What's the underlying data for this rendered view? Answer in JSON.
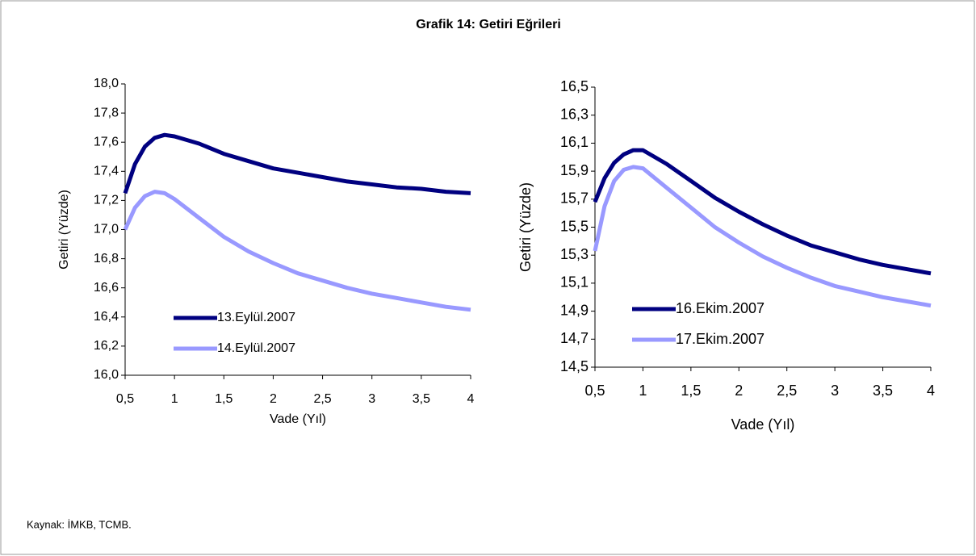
{
  "title": "Grafik 14: Getiri Eğrileri",
  "source": "Kaynak: İMKB, TCMB.",
  "chart_data": [
    {
      "type": "line",
      "x_label": "Vade (Yıl)",
      "y_label": "Getiri (Yüzde)",
      "x": [
        0.5,
        0.6,
        0.7,
        0.8,
        0.9,
        1.0,
        1.25,
        1.5,
        1.75,
        2,
        2.25,
        2.5,
        2.75,
        3,
        3.25,
        3.5,
        3.75,
        4
      ],
      "series": [
        {
          "name": "13.Eylül.2007",
          "color": "#000080",
          "values": [
            17.25,
            17.45,
            17.57,
            17.63,
            17.65,
            17.64,
            17.59,
            17.52,
            17.47,
            17.42,
            17.39,
            17.36,
            17.33,
            17.31,
            17.29,
            17.28,
            17.26,
            17.25
          ]
        },
        {
          "name": "14.Eylül.2007",
          "color": "#9999ff",
          "values": [
            17.0,
            17.15,
            17.23,
            17.26,
            17.25,
            17.21,
            17.08,
            16.95,
            16.85,
            16.77,
            16.7,
            16.65,
            16.6,
            16.56,
            16.53,
            16.5,
            16.47,
            16.45
          ]
        }
      ],
      "xlim": [
        0.5,
        4
      ],
      "xticks": [
        {
          "value": 0.5,
          "label": "0,5"
        },
        1,
        {
          "value": 1.5,
          "label": "1,5"
        },
        2,
        {
          "value": 2.5,
          "label": "2,5"
        },
        3,
        {
          "value": 3.5,
          "label": "3,5"
        },
        4
      ],
      "ylim": [
        16,
        18
      ],
      "yticks": [
        {
          "value": 16,
          "label": "16,0"
        },
        {
          "value": 16.2,
          "label": "16,2"
        },
        {
          "value": 16.4,
          "label": "16,4"
        },
        {
          "value": 16.6,
          "label": "16,6"
        },
        {
          "value": 16.8,
          "label": "16,8"
        },
        {
          "value": 17,
          "label": "17,0"
        },
        {
          "value": 17.2,
          "label": "17,2"
        },
        {
          "value": 17.4,
          "label": "17,4"
        },
        {
          "value": 17.6,
          "label": "17,6"
        },
        {
          "value": 17.8,
          "label": "17,8"
        },
        {
          "value": 18,
          "label": "18,0"
        }
      ]
    },
    {
      "type": "line",
      "x_label": "Vade (Yıl)",
      "y_label": "Getiri (Yüzde)",
      "x": [
        0.5,
        0.6,
        0.7,
        0.8,
        0.9,
        1.0,
        1.25,
        1.5,
        1.75,
        2,
        2.25,
        2.5,
        2.75,
        3,
        3.25,
        3.5,
        3.75,
        4
      ],
      "series": [
        {
          "name": "16.Ekim.2007",
          "color": "#000080",
          "values": [
            15.68,
            15.85,
            15.96,
            16.02,
            16.05,
            16.05,
            15.95,
            15.83,
            15.71,
            15.61,
            15.52,
            15.44,
            15.37,
            15.32,
            15.27,
            15.23,
            15.2,
            15.17
          ]
        },
        {
          "name": "17.Ekim.2007",
          "color": "#9999ff",
          "values": [
            15.33,
            15.65,
            15.83,
            15.91,
            15.93,
            15.92,
            15.78,
            15.64,
            15.5,
            15.39,
            15.29,
            15.21,
            15.14,
            15.08,
            15.04,
            15.0,
            14.97,
            14.94
          ]
        }
      ],
      "xlim": [
        0.5,
        4
      ],
      "xticks": [
        {
          "value": 0.5,
          "label": "0,5"
        },
        1,
        {
          "value": 1.5,
          "label": "1,5"
        },
        2,
        {
          "value": 2.5,
          "label": "2,5"
        },
        3,
        {
          "value": 3.5,
          "label": "3,5"
        },
        4
      ],
      "ylim": [
        14.5,
        16.5
      ],
      "yticks": [
        {
          "value": 14.5,
          "label": "14,5"
        },
        {
          "value": 14.7,
          "label": "14,7"
        },
        {
          "value": 14.9,
          "label": "14,9"
        },
        {
          "value": 15.1,
          "label": "15,1"
        },
        {
          "value": 15.3,
          "label": "15,3"
        },
        {
          "value": 15.5,
          "label": "15,5"
        },
        {
          "value": 15.7,
          "label": "15,7"
        },
        {
          "value": 15.9,
          "label": "15,9"
        },
        {
          "value": 16.1,
          "label": "16,1"
        },
        {
          "value": 16.3,
          "label": "16,3"
        },
        {
          "value": 16.5,
          "label": "16,5"
        }
      ]
    }
  ]
}
